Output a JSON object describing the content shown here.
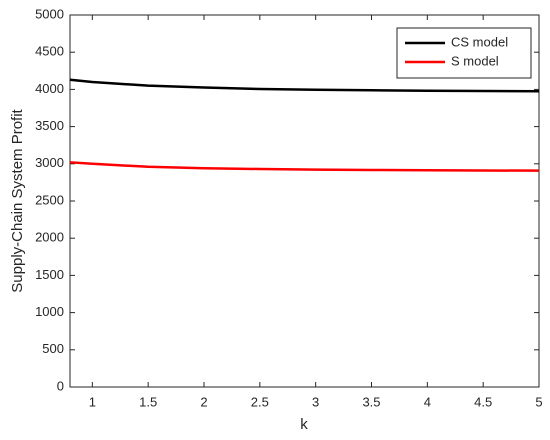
{
  "chart_data": {
    "type": "line",
    "xlabel": "k",
    "ylabel": "Supply-Chain System Profit",
    "x": [
      0.8,
      1,
      1.5,
      2,
      2.5,
      3,
      3.5,
      4,
      4.5,
      5
    ],
    "series": [
      {
        "name": "CS model",
        "color": "#000000",
        "values": [
          4130,
          4100,
          4050,
          4025,
          4005,
          3995,
          3988,
          3982,
          3978,
          3975
        ]
      },
      {
        "name": "S model",
        "color": "#ff0000",
        "values": [
          3020,
          3000,
          2960,
          2940,
          2930,
          2922,
          2917,
          2913,
          2910,
          2908
        ]
      }
    ],
    "xlim": [
      0.8,
      5
    ],
    "xticks": [
      1,
      1.5,
      2,
      2.5,
      3,
      3.5,
      4,
      4.5,
      5
    ],
    "ylim": [
      0,
      5000
    ],
    "yticks": [
      0,
      500,
      1000,
      1500,
      2000,
      2500,
      3000,
      3500,
      4000,
      4500,
      5000
    ],
    "grid": false,
    "legend": "northeast"
  }
}
